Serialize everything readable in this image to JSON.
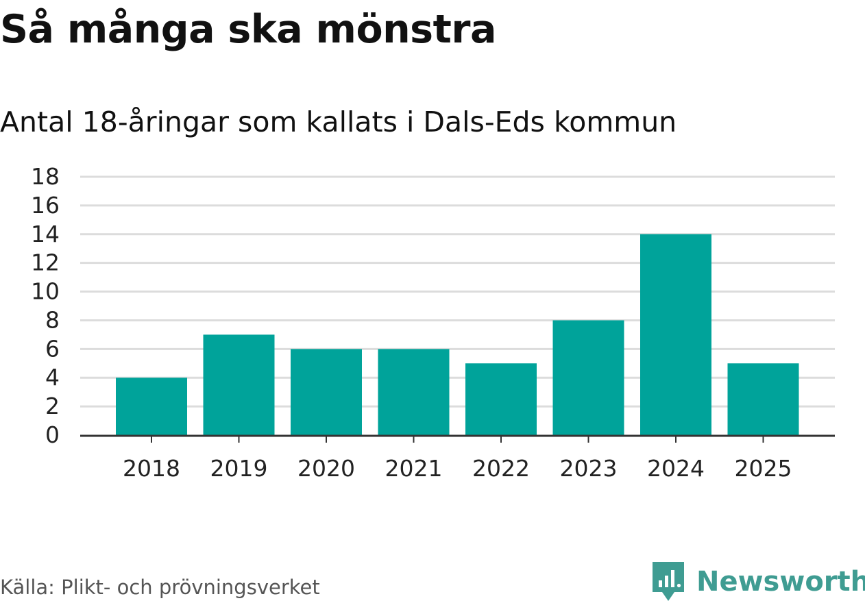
{
  "header": {
    "title": "Så många ska mönstra",
    "subtitle": "Antal 18-åringar som kallats i Dals-Eds kommun"
  },
  "footer": {
    "source": "Källa: Plikt- och prövningsverket",
    "brand": "Newsworthy"
  },
  "colors": {
    "bar": "#00a39a",
    "grid": "#dcdcdc",
    "axis": "#333333",
    "brand": "#3f9c92"
  },
  "chart_data": {
    "type": "bar",
    "title": "Så många ska mönstra",
    "subtitle": "Antal 18-åringar som kallats i Dals-Eds kommun",
    "xlabel": "",
    "ylabel": "",
    "categories": [
      "2018",
      "2019",
      "2020",
      "2021",
      "2022",
      "2023",
      "2024",
      "2025"
    ],
    "values": [
      4,
      7,
      6,
      6,
      5,
      8,
      14,
      5
    ],
    "ylim": [
      0,
      18
    ],
    "yticks": [
      0,
      2,
      4,
      6,
      8,
      10,
      12,
      14,
      16,
      18
    ],
    "grid": true,
    "legend": "none"
  }
}
